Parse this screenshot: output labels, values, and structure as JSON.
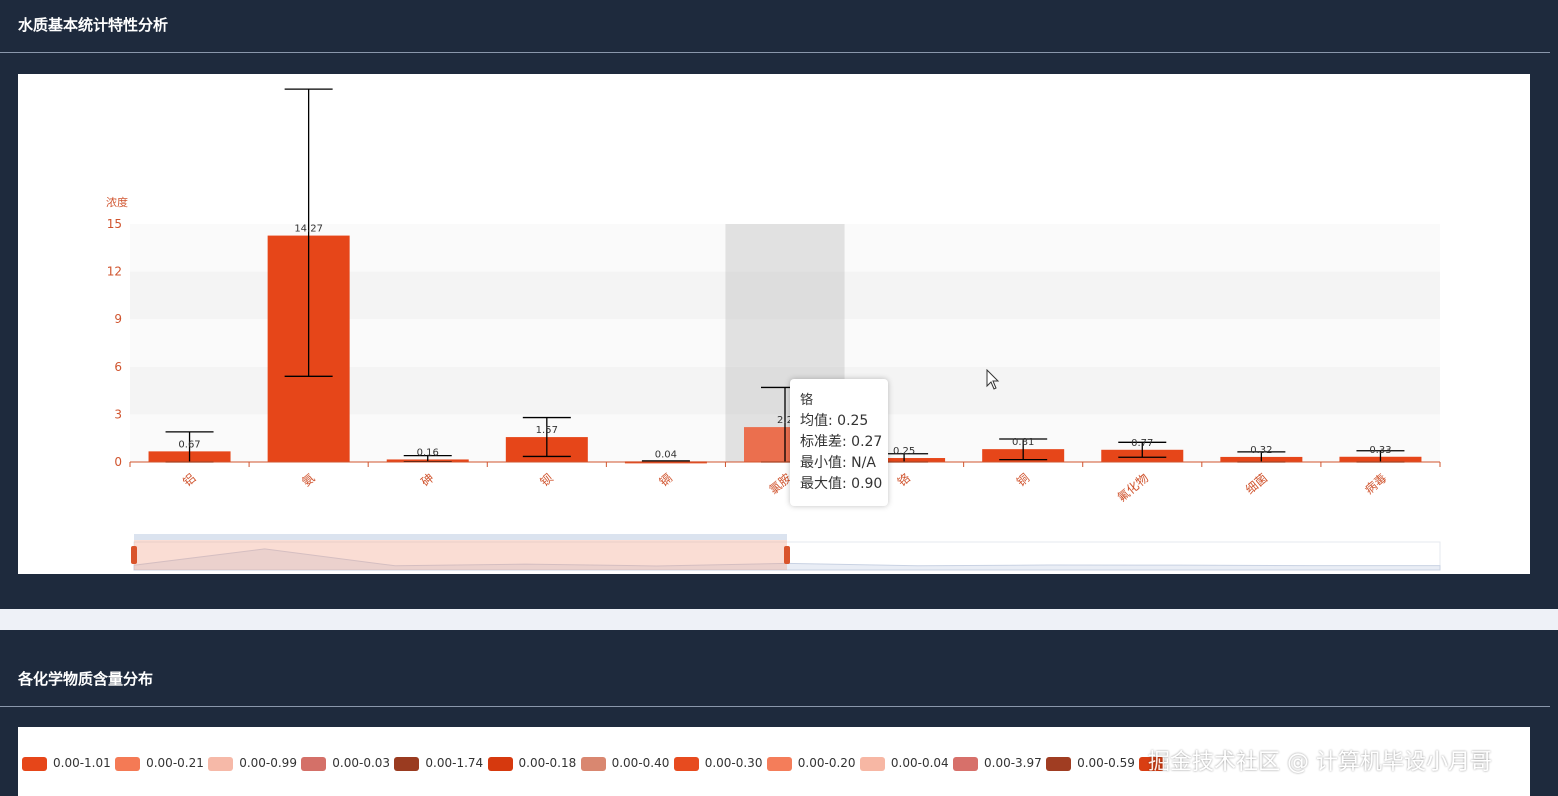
{
  "sections": [
    {
      "title": "水质基本统计特性分析"
    },
    {
      "title": "各化学物质含量分布"
    }
  ],
  "chart_data": {
    "type": "bar",
    "ylabel": "浓度",
    "ylim": [
      0,
      15
    ],
    "yticks": [
      0,
      3,
      6,
      9,
      12,
      15
    ],
    "grid": "horizontal bands",
    "categories": [
      "铝",
      "氨",
      "砷",
      "钡",
      "镉",
      "氯胺",
      "铬",
      "铜",
      "氟化物",
      "细菌",
      "病毒"
    ],
    "values": [
      0.67,
      14.27,
      0.16,
      1.57,
      0.04,
      2.2,
      0.25,
      0.81,
      0.77,
      0.32,
      0.33
    ],
    "labels": [
      "0.67",
      "14.27",
      "0.16",
      "1.57",
      "0.04",
      "2.2",
      "0.25",
      "0.81",
      "0.77",
      "0.32",
      "0.33"
    ],
    "error_low": [
      0,
      5.4,
      0.02,
      0.35,
      0.01,
      0,
      0,
      0.15,
      0.3,
      0,
      0
    ],
    "error_high": [
      1.9,
      23.5,
      0.4,
      2.8,
      0.07,
      4.7,
      0.52,
      1.45,
      1.24,
      0.64,
      0.71
    ],
    "highlighted": "氯胺",
    "colors": {
      "bar": "#e64619",
      "bar_highlight": "#eb6f4e",
      "error": "#000000",
      "axis": "#d0542e"
    }
  },
  "tooltip": {
    "title": "铬",
    "mean_label": "均值:",
    "mean": "0.25",
    "std_label": "标准差:",
    "std": "0.27",
    "min_label": "最小值:",
    "min": "N/A",
    "max_label": "最大值:",
    "max": "0.90"
  },
  "legend": [
    {
      "label": "0.00-1.01",
      "color": "#e64619"
    },
    {
      "label": "0.00-0.21",
      "color": "#f47a55"
    },
    {
      "label": "0.00-0.99",
      "color": "#f6b9a8"
    },
    {
      "label": "0.00-0.03",
      "color": "#d47068"
    },
    {
      "label": "0.00-1.74",
      "color": "#9a3b20"
    },
    {
      "label": "0.00-0.18",
      "color": "#d6390e"
    },
    {
      "label": "0.00-0.40",
      "color": "#d98770"
    },
    {
      "label": "0.00-0.30",
      "color": "#e74b1f"
    },
    {
      "label": "0.00-0.20",
      "color": "#f47d5a"
    },
    {
      "label": "0.00-0.04",
      "color": "#f7b7a4"
    },
    {
      "label": "0.00-3.97",
      "color": "#d7706a"
    },
    {
      "label": "0.00-0.59",
      "color": "#a03d22"
    },
    {
      "label": "",
      "color": "#d93e12"
    }
  ],
  "watermark": "掘金技术社区 @ 计算机毕设小月哥"
}
